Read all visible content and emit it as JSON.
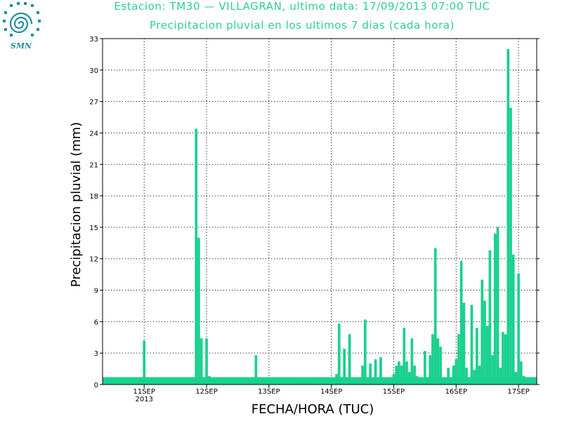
{
  "logo": {
    "text": "SMN",
    "color": "#1e8fa0"
  },
  "header": {
    "title_line1": "Estacion: TM30 — VILLAGRAN, ultimo data: 17/09/2013 07:00 TUC",
    "title_line2": "Precipitacion pluvial en los ultimos 7 dias (cada hora)"
  },
  "chart_data": {
    "type": "bar",
    "title": "Estacion: TM30 — VILLAGRAN, ultimo data: 17/09/2013 07:00 TUC",
    "subtitle": "Precipitacion pluvial en los ultimos 7 dias (cada hora)",
    "xlabel": "FECHA/HORA (TUC)",
    "ylabel": "Precipitacion pluvial (mm)",
    "ylim": [
      0,
      33
    ],
    "yticks": [
      0,
      3,
      6,
      9,
      12,
      15,
      18,
      21,
      24,
      27,
      30,
      33
    ],
    "xticks": [
      {
        "label": "11SEP",
        "sublabel": "2013",
        "hour": 40
      },
      {
        "label": "12SEP",
        "hour": 64
      },
      {
        "label": "13SEP",
        "hour": 88
      },
      {
        "label": "14SEP",
        "hour": 112
      },
      {
        "label": "15SEP",
        "hour": 136
      },
      {
        "label": "16SEP",
        "hour": 160
      },
      {
        "label": "17SEP",
        "hour": 184
      }
    ],
    "xlim_hours": [
      24,
      191
    ],
    "grid": true,
    "bar_color": "#19d18e",
    "baseline_value": 0.7,
    "values_note": "hourly precipitation in mm; hour index counted from 10SEP 00:00",
    "bars": [
      [
        32,
        0.3
      ],
      [
        39,
        0.7
      ],
      [
        40,
        4.2
      ],
      [
        41,
        0.3
      ],
      [
        43,
        0.4
      ],
      [
        44,
        0.4
      ],
      [
        59,
        0.4
      ],
      [
        60,
        24.4
      ],
      [
        61,
        14.0
      ],
      [
        62,
        4.4
      ],
      [
        63,
        0.4
      ],
      [
        64,
        4.4
      ],
      [
        65,
        0.8
      ],
      [
        66,
        0.5
      ],
      [
        81,
        0.3
      ],
      [
        82,
        0.4
      ],
      [
        83,
        2.8
      ],
      [
        102,
        0.3
      ],
      [
        112,
        0.5
      ],
      [
        113,
        0.3
      ],
      [
        114,
        1.0
      ],
      [
        115,
        5.8
      ],
      [
        116,
        0.3
      ],
      [
        117,
        3.4
      ],
      [
        118,
        0.3
      ],
      [
        119,
        4.8
      ],
      [
        121,
        0.3
      ],
      [
        122,
        0.5
      ],
      [
        123,
        0.4
      ],
      [
        124,
        1.8
      ],
      [
        125,
        6.2
      ],
      [
        126,
        0.4
      ],
      [
        127,
        2.0
      ],
      [
        128,
        0.4
      ],
      [
        129,
        2.4
      ],
      [
        130,
        0.3
      ],
      [
        131,
        2.6
      ],
      [
        132,
        0.5
      ],
      [
        133,
        0.3
      ],
      [
        134,
        0.3
      ],
      [
        135,
        0.4
      ],
      [
        136,
        1.0
      ],
      [
        137,
        1.8
      ],
      [
        138,
        2.2
      ],
      [
        139,
        1.8
      ],
      [
        140,
        5.4
      ],
      [
        141,
        2.2
      ],
      [
        142,
        1.2
      ],
      [
        143,
        4.4
      ],
      [
        144,
        1.8
      ],
      [
        145,
        0.8
      ],
      [
        146,
        0.4
      ],
      [
        147,
        0.6
      ],
      [
        148,
        3.2
      ],
      [
        149,
        0.3
      ],
      [
        150,
        2.8
      ],
      [
        151,
        4.8
      ],
      [
        152,
        13.0
      ],
      [
        153,
        4.4
      ],
      [
        154,
        3.6
      ],
      [
        155,
        0.6
      ],
      [
        156,
        0.6
      ],
      [
        157,
        1.6
      ],
      [
        158,
        0.4
      ],
      [
        159,
        1.8
      ],
      [
        160,
        2.4
      ],
      [
        161,
        4.8
      ],
      [
        162,
        11.8
      ],
      [
        163,
        7.8
      ],
      [
        164,
        1.6
      ],
      [
        165,
        0.5
      ],
      [
        166,
        7.6
      ],
      [
        167,
        1.4
      ],
      [
        168,
        5.4
      ],
      [
        169,
        1.8
      ],
      [
        170,
        10.0
      ],
      [
        171,
        8.0
      ],
      [
        172,
        5.6
      ],
      [
        173,
        12.8
      ],
      [
        174,
        2.8
      ],
      [
        175,
        14.4
      ],
      [
        176,
        15.0
      ],
      [
        177,
        1.6
      ],
      [
        178,
        5.0
      ],
      [
        179,
        4.8
      ],
      [
        180,
        32.0
      ],
      [
        181,
        26.4
      ],
      [
        182,
        12.4
      ],
      [
        183,
        1.2
      ],
      [
        184,
        10.6
      ],
      [
        185,
        2.2
      ],
      [
        186,
        0.8
      ]
    ]
  }
}
